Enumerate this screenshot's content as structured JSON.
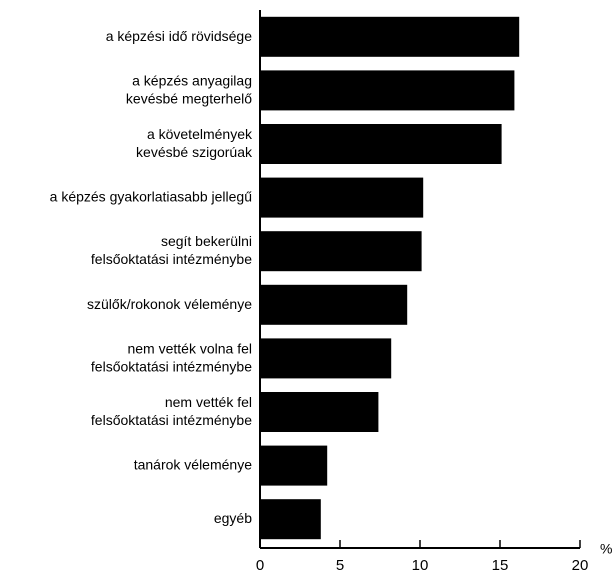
{
  "chart_data": {
    "type": "bar",
    "orientation": "horizontal",
    "categories": [
      "a képzési idő rövidsége",
      "a képzés anyagilag\nkevésbé megterhelő",
      "a követelmények\nkevésbé szigorúak",
      "a képzés gyakorlatiasabb jellegű",
      "segít bekerülni\nfelsőoktatási intézménybe",
      "szülők/rokonok véleménye",
      "nem vették volna fel\nfelsőoktatási intézménybe",
      "nem vették fel\nfelsőoktatási intézménybe",
      "tanárok véleménye",
      "egyéb"
    ],
    "values": [
      16.2,
      15.9,
      15.1,
      10.2,
      10.1,
      9.2,
      8.2,
      7.4,
      4.2,
      3.8
    ],
    "color": "#000000",
    "xlim": [
      0,
      20
    ],
    "xticks": [
      0,
      5,
      10,
      15,
      20
    ],
    "unit": "%",
    "grid": false
  }
}
